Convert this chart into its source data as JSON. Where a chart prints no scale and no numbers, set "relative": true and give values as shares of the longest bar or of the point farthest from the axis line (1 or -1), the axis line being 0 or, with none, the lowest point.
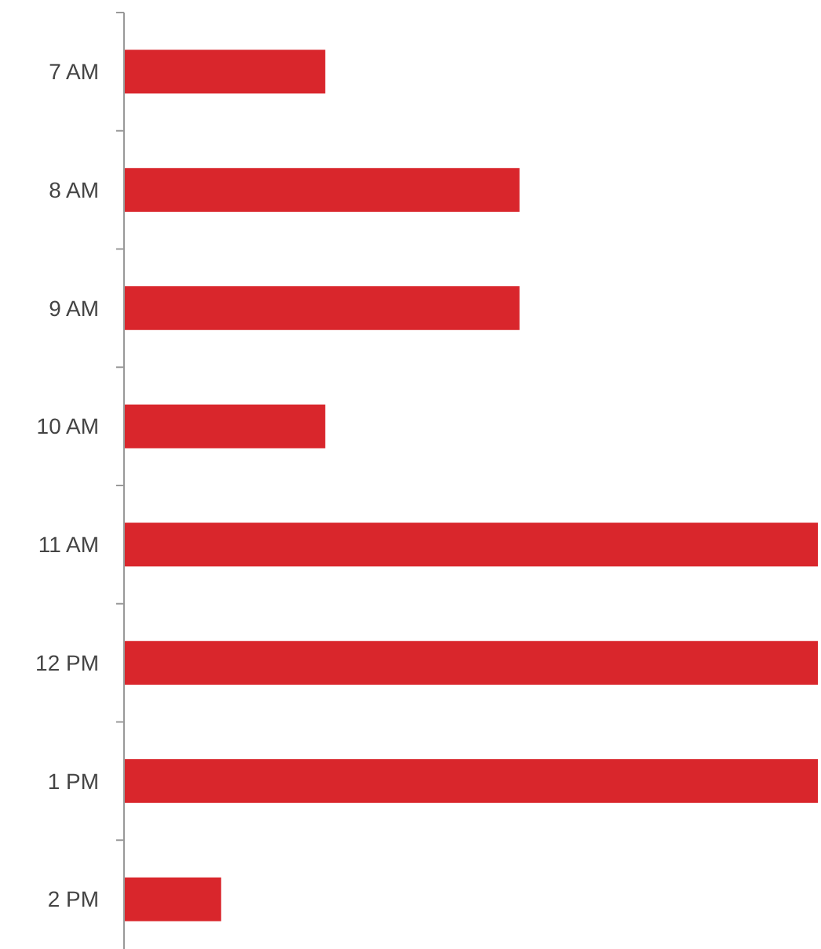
{
  "chart_data": {
    "type": "bar",
    "orientation": "horizontal",
    "relative": true,
    "categories": [
      "7 AM",
      "8 AM",
      "9 AM",
      "10 AM",
      "11 AM",
      "12 PM",
      "1 PM",
      "2 PM"
    ],
    "series": [
      {
        "color": "#d9262c",
        "values": [
          0.29,
          0.57,
          0.57,
          0.29,
          1,
          1,
          1,
          0.14
        ]
      }
    ]
  }
}
